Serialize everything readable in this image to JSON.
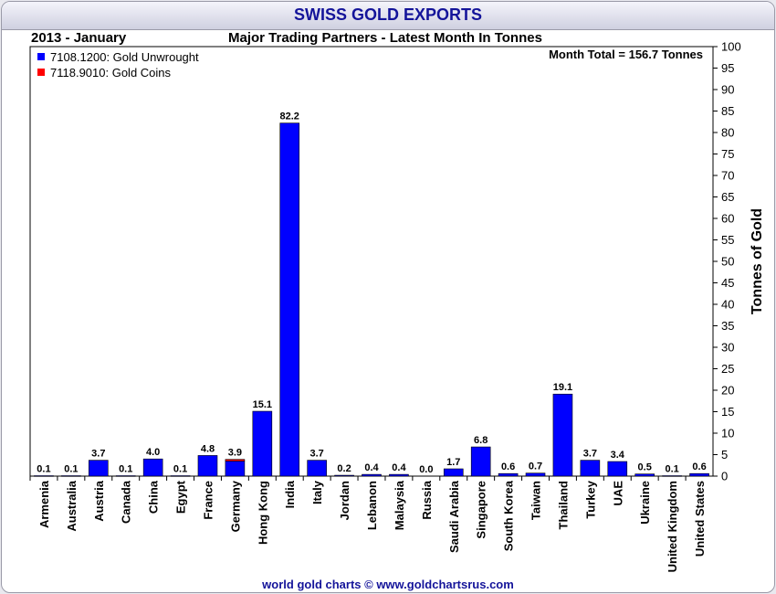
{
  "header": {
    "title": "SWISS GOLD EXPORTS",
    "period": "2013 - January",
    "subtitle": "Major Trading Partners - Latest Month In Tonnes"
  },
  "footer": {
    "credit": "world gold charts © www.goldchartsrus.com"
  },
  "chart_data": {
    "type": "bar",
    "stacked": true,
    "title": "Major Trading Partners - Latest Month In Tonnes",
    "ylabel": "Tonnes of Gold",
    "ylim": [
      0,
      100
    ],
    "ytick_step": 5,
    "yaxis_side": "right",
    "grid": false,
    "legend_position": "top-left",
    "annotation": "Month Total = 156.7 Tonnes",
    "categories": [
      "Armenia",
      "Australia",
      "Austria",
      "Canada",
      "China",
      "Egypt",
      "France",
      "Germany",
      "Hong Kong",
      "India",
      "Italy",
      "Jordan",
      "Lebanon",
      "Malaysia",
      "Russia",
      "Saudi Arabia",
      "Singapore",
      "South Korea",
      "Taiwan",
      "Thailand",
      "Turkey",
      "UAE",
      "Ukraine",
      "United Kingdom",
      "United States"
    ],
    "totals": [
      "0.1",
      "0.1",
      "3.7",
      "0.1",
      "4.0",
      "0.1",
      "4.8",
      "3.9",
      "15.1",
      "82.2",
      "3.7",
      "0.2",
      "0.4",
      "0.4",
      "0.0",
      "1.7",
      "6.8",
      "0.6",
      "0.7",
      "19.1",
      "3.7",
      "3.4",
      "0.5",
      "0.1",
      "0.6"
    ],
    "series": [
      {
        "name": "7108.1200: Gold Unwrought",
        "color": "#0000ff",
        "values": [
          0.1,
          0.1,
          3.7,
          0.1,
          4.0,
          0.1,
          4.8,
          3.5,
          15.1,
          82.2,
          3.7,
          0.2,
          0.4,
          0.4,
          0.0,
          1.7,
          6.8,
          0.6,
          0.7,
          19.1,
          3.7,
          3.4,
          0.5,
          0.1,
          0.6
        ]
      },
      {
        "name": "7118.9010: Gold Coins",
        "color": "#ff0000",
        "values": [
          0,
          0,
          0,
          0,
          0,
          0,
          0,
          0.4,
          0,
          0,
          0,
          0,
          0,
          0,
          0,
          0,
          0,
          0,
          0,
          0,
          0,
          0,
          0,
          0,
          0
        ]
      }
    ]
  }
}
